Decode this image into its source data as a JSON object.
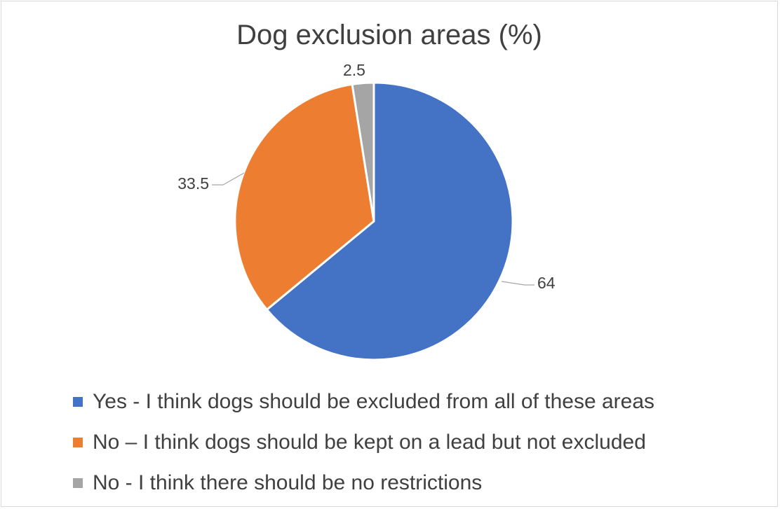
{
  "chart_data": {
    "type": "pie",
    "title": "Dog exclusion areas (%)",
    "slices": [
      {
        "label": "Yes - I think dogs should be excluded from all of these areas",
        "value": 64,
        "data_label": "64",
        "color": "#4472C4"
      },
      {
        "label": "No – I think dogs should be kept on a lead but not excluded",
        "value": 33.5,
        "data_label": "33.5",
        "color": "#ED7D31"
      },
      {
        "label": "No - I think there should be no restrictions",
        "value": 2.5,
        "data_label": "2.5",
        "color": "#A5A5A5"
      }
    ],
    "legend_position": "bottom",
    "start_angle_deg": 0,
    "direction": "clockwise"
  }
}
